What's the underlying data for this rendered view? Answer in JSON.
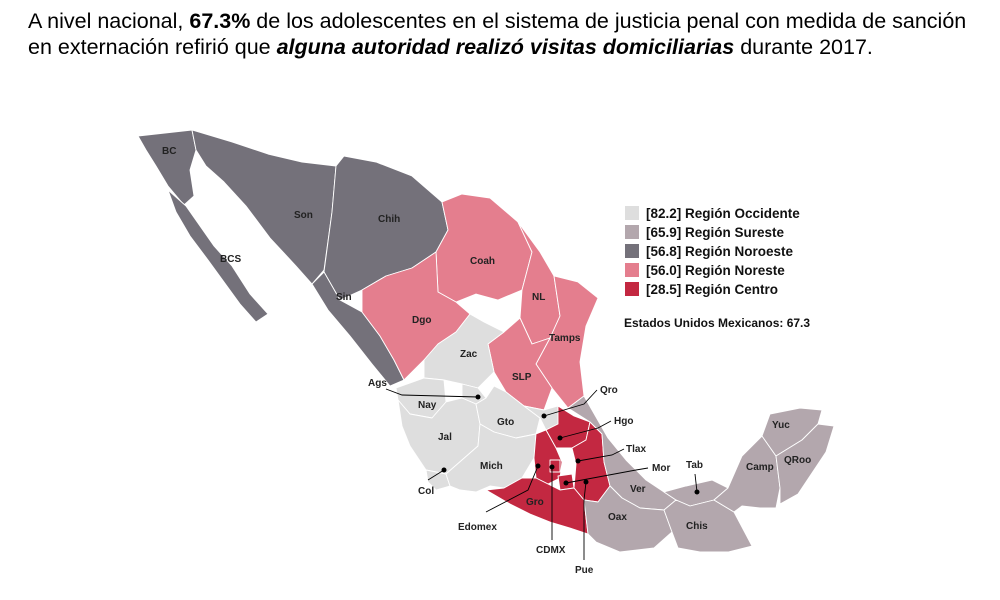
{
  "headline": {
    "part1": "A nivel nacional, ",
    "bold": "67.3%",
    "part2": " de los adolescentes en el sistema de justicia penal con medida de sanción en externación refirió que ",
    "bold_italic": "alguna autoridad realizó visitas domiciliarias",
    "part3": " durante 2017."
  },
  "legend": [
    {
      "label": "[82.2] Región Occidente",
      "color": "#dedede"
    },
    {
      "label": "[65.9] Región Sureste",
      "color": "#b3a7ad"
    },
    {
      "label": "[56.8] Región Noroeste",
      "color": "#74717a"
    },
    {
      "label": "[56.0] Región Noreste",
      "color": "#e47e8e"
    },
    {
      "label": "[28.5] Región Centro",
      "color": "#c32841"
    }
  ],
  "national": "Estados Unidos Mexicanos:  67.3",
  "states": {
    "bc": "BC",
    "son": "Son",
    "chih": "Chih",
    "bcs": "BCS",
    "sin": "Sin",
    "coah": "Coah",
    "nl": "NL",
    "dgo": "Dgo",
    "tamps": "Tamps",
    "zac": "Zac",
    "slp": "SLP",
    "ags": "Ags",
    "nay": "Nay",
    "qro": "Qro",
    "gto": "Gto",
    "hgo": "Hgo",
    "jal": "Jal",
    "tlax": "Tlax",
    "mich": "Mich",
    "mor": "Mor",
    "col": "Col",
    "gro": "Gro",
    "edomex": "Edomex",
    "cdmx": "CDMX",
    "pue": "Pue",
    "ver": "Ver",
    "oax": "Oax",
    "tab": "Tab",
    "chis": "Chis",
    "camp": "Camp",
    "yuc": "Yuc",
    "qroo": "QRoo"
  }
}
